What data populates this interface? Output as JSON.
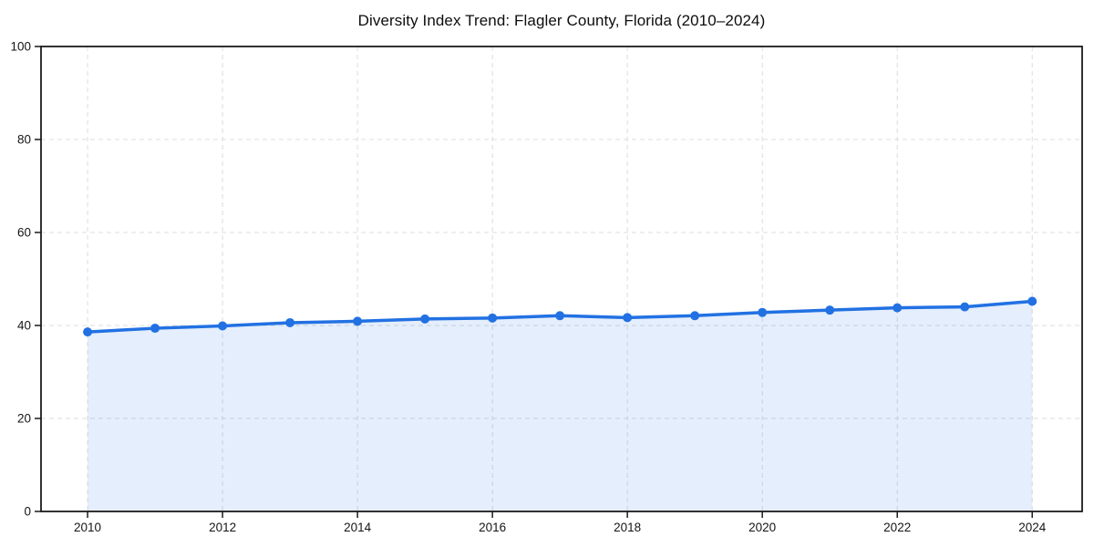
{
  "chart_data": {
    "type": "area",
    "title": "Diversity Index Trend: Flagler County, Florida (2010–2024)",
    "x": [
      2010,
      2011,
      2012,
      2013,
      2014,
      2015,
      2016,
      2017,
      2018,
      2019,
      2020,
      2021,
      2022,
      2023,
      2024
    ],
    "series": [
      {
        "name": "Diversity Index",
        "values": [
          38.6,
          39.4,
          39.9,
          40.6,
          40.9,
          41.4,
          41.6,
          42.1,
          41.7,
          42.1,
          42.8,
          43.3,
          43.8,
          44.0,
          45.2
        ]
      }
    ],
    "xlabel": "",
    "ylabel": "",
    "xticks": [
      2010,
      2012,
      2014,
      2016,
      2018,
      2020,
      2022,
      2024
    ],
    "yticks": [
      0,
      20,
      40,
      60,
      80,
      100
    ],
    "ylim": [
      0,
      100
    ],
    "grid": "dashed",
    "legend_position": "none",
    "colors": {
      "line": "#2271e3",
      "marker": "#2271e3",
      "fill": "#2271e3",
      "fill_opacity": 0.12,
      "gridline": "#dcdcdc",
      "spine": "#1b1b1b",
      "tick_text": "#151515",
      "background": "#ffffff"
    },
    "marker_style": "circle",
    "line_width": 3.5,
    "marker_radius": 5
  }
}
